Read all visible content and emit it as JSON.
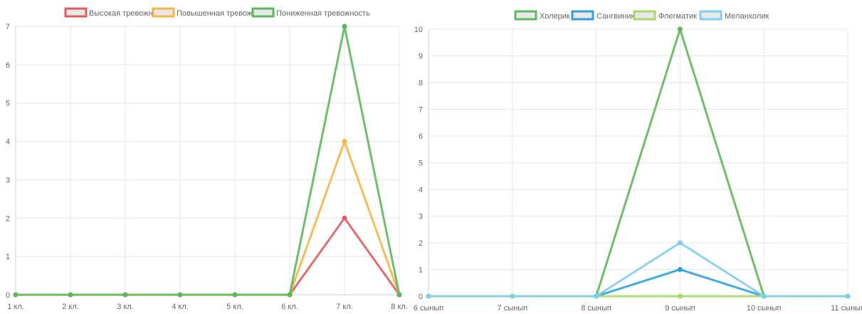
{
  "chart_data": [
    {
      "type": "line",
      "categories": [
        "1 кл.",
        "2 кл.",
        "3 кл.",
        "4 кл.",
        "5 кл.",
        "6 кл.",
        "7 кл.",
        "8 кл."
      ],
      "series": [
        {
          "name": "Высокая тревожность",
          "color": "#e05c5c",
          "values": [
            0,
            0,
            0,
            0,
            0,
            0,
            2,
            0
          ]
        },
        {
          "name": "Повышенная тревожность",
          "color": "#f5b547",
          "values": [
            0,
            0,
            0,
            0,
            0,
            0,
            4,
            0
          ]
        },
        {
          "name": "Пониженная тревожность",
          "color": "#5cb85c",
          "values": [
            0,
            0,
            0,
            0,
            0,
            0,
            7,
            0
          ]
        }
      ],
      "yticks": [
        "0",
        "1",
        "2",
        "3",
        "4",
        "5",
        "6",
        "7"
      ],
      "ylim": [
        0,
        7
      ],
      "grid": true,
      "legend": "top"
    },
    {
      "type": "line",
      "categories": [
        "6 сынып",
        "7 сынып",
        "8 сынып",
        "9 сынып",
        "10 сынып",
        "11 сынып"
      ],
      "series": [
        {
          "name": "Холерик",
          "color": "#5cb85c",
          "values": [
            0,
            0,
            0,
            10,
            0,
            0
          ]
        },
        {
          "name": "Сангвиник",
          "color": "#2e9fe6",
          "values": [
            0,
            0,
            0,
            1,
            0,
            0
          ]
        },
        {
          "name": "Флегматик",
          "color": "#a6d96a",
          "values": [
            0,
            0,
            0,
            0,
            0,
            0
          ]
        },
        {
          "name": "Меланхолик",
          "color": "#7fcdf0",
          "values": [
            0,
            0,
            0,
            2,
            0,
            0
          ]
        }
      ],
      "yticks": [
        "0",
        "1",
        "2",
        "3",
        "4",
        "5",
        "6",
        "7",
        "8",
        "9",
        "10"
      ],
      "ylim": [
        0,
        10
      ],
      "grid": true,
      "legend": "top"
    }
  ]
}
